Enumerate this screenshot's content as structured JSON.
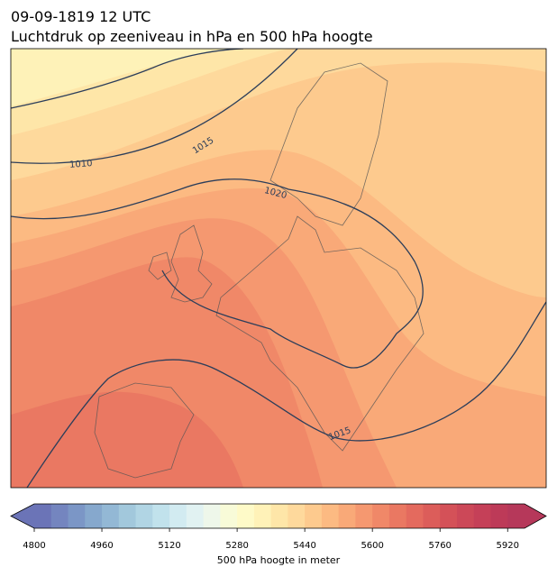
{
  "title": "09-09-1819 12 UTC",
  "subtitle": "Luchtdruk op zeeniveau in hPa en 500 hPa hoogte",
  "isobar_labels": [
    1010,
    1015,
    1020,
    1015
  ],
  "colorbar": {
    "label": "500 hPa hoogte in meter",
    "lim": [
      4800,
      5960
    ],
    "ticks": [
      4800,
      4960,
      5120,
      5280,
      5440,
      5600,
      5760,
      5920
    ],
    "colors": [
      "#6b74b7",
      "#7485bf",
      "#7b96c6",
      "#86a8cd",
      "#93b8d5",
      "#a2c8dc",
      "#b1d5e4",
      "#c1e2ec",
      "#d2ebf1",
      "#e1f2f2",
      "#eef7ea",
      "#f8fbd8",
      "#fefac8",
      "#fff2b8",
      "#fee6a8",
      "#fed99c",
      "#fdca8e",
      "#fcba82",
      "#f9a978",
      "#f59870",
      "#f08868",
      "#ea7862",
      "#e46a5e",
      "#dc5d5a",
      "#d45158",
      "#cc4858",
      "#c54058",
      "#bd3a58",
      "#b6385a"
    ]
  }
}
